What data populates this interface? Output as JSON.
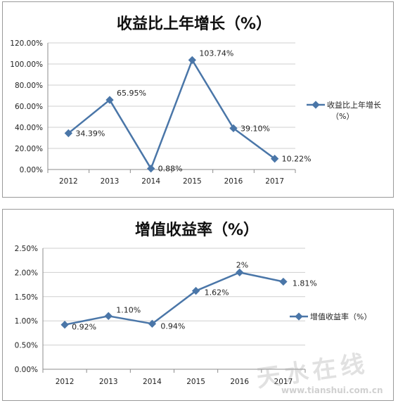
{
  "chart_data": [
    {
      "type": "line",
      "title": "收益比上年增长（%）",
      "categories": [
        "2012",
        "2013",
        "2014",
        "2015",
        "2016",
        "2017"
      ],
      "series": [
        {
          "name": "收益比上年增长（%）",
          "values": [
            34.39,
            65.95,
            0.88,
            103.74,
            39.1,
            10.22
          ]
        }
      ],
      "value_labels": [
        "34.39%",
        "65.95%",
        "0.88%",
        "103.74%",
        "39.10%",
        "10.22%"
      ],
      "y_ticks": [
        "0.00%",
        "20.00%",
        "40.00%",
        "60.00%",
        "80.00%",
        "100.00%",
        "120.00%"
      ],
      "ylim": [
        0,
        120
      ],
      "legend_lines": [
        "收益比上年增长",
        "（%）"
      ],
      "legend_position": "right",
      "grid": true,
      "line_color": "#4a76a8"
    },
    {
      "type": "line",
      "title": "增值收益率（%）",
      "categories": [
        "2012",
        "2013",
        "2014",
        "2015",
        "2016",
        "2017"
      ],
      "series": [
        {
          "name": "增值收益率（%）",
          "values": [
            0.92,
            1.1,
            0.94,
            1.62,
            2.0,
            1.81
          ]
        }
      ],
      "value_labels": [
        "0.92%",
        "1.10%",
        "0.94%",
        "1.62%",
        "2%",
        "1.81%"
      ],
      "y_ticks": [
        "0.00%",
        "0.50%",
        "1.00%",
        "1.50%",
        "2.00%",
        "2.50%"
      ],
      "ylim": [
        0,
        2.5
      ],
      "legend_lines": [
        "增值收益率（%）"
      ],
      "legend_position": "right",
      "grid": true,
      "line_color": "#4a76a8"
    }
  ],
  "watermark": {
    "text": "天水在线",
    "url": "www.tianshui.com.cn"
  }
}
